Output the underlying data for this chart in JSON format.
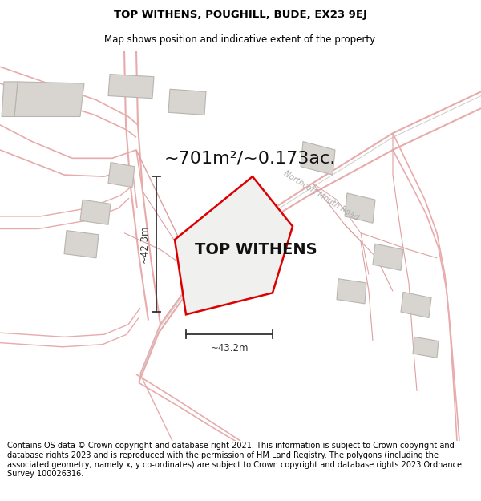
{
  "title_line1": "TOP WITHENS, POUGHILL, BUDE, EX23 9EJ",
  "title_line2": "Map shows position and indicative extent of the property.",
  "property_label": "TOP WITHENS",
  "area_label": "~701m²/~0.173ac.",
  "dim_horizontal": "~43.2m",
  "dim_vertical": "~42.3m",
  "road_label": "Northcott Mouth Road",
  "footer_text": "Contains OS data © Crown copyright and database right 2021. This information is subject to Crown copyright and database rights 2023 and is reproduced with the permission of HM Land Registry. The polygons (including the associated geometry, namely x, y co-ordinates) are subject to Crown copyright and database rights 2023 Ordnance Survey 100026316.",
  "map_bg": "#ffffff",
  "property_fill": "#f0f0ee",
  "property_edge": "#dd0000",
  "road_color": "#e8aaaa",
  "boundary_color": "#dda0a0",
  "road_label_color": "#aaaaaa",
  "building_fill": "#d8d5d0",
  "building_edge": "#b8b5b0",
  "dim_color": "#333333",
  "title_fontsize": 9.5,
  "subtitle_fontsize": 8.5,
  "area_fontsize": 16,
  "label_fontsize": 14,
  "road_label_fontsize": 7,
  "dim_fontsize": 8.5,
  "footer_fontsize": 7.0
}
